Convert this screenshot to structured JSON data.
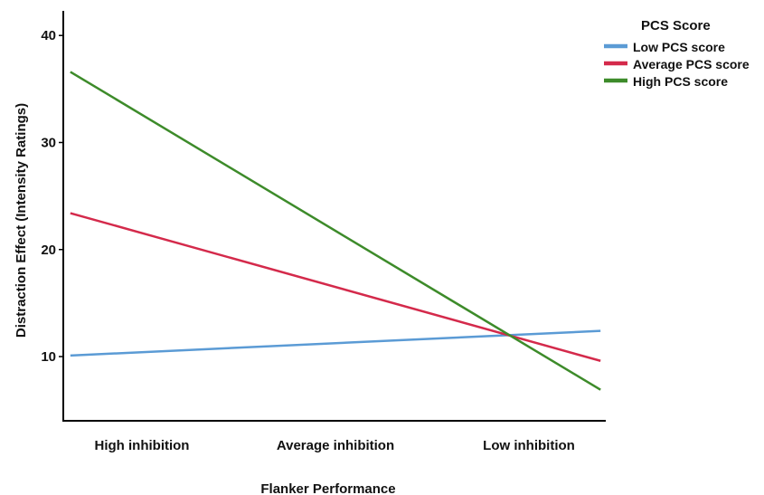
{
  "chart_data": {
    "type": "line",
    "title": "",
    "xlabel": "Flanker Performance",
    "ylabel": "Distraction Effect (Intensity Ratings)",
    "categories": [
      "High inhibition",
      "Average inhibition",
      "Low inhibition"
    ],
    "x_range": [
      0,
      2
    ],
    "yticks": [
      10,
      20,
      30,
      40
    ],
    "ylim": [
      4.0,
      42.3
    ],
    "grid": false,
    "legend": {
      "title": "PCS Score",
      "position": "top-right"
    },
    "series": [
      {
        "name": "Low PCS score",
        "color": "#5b9bd5",
        "x": [
          -0.37,
          2.37
        ],
        "values": [
          10.1,
          12.4
        ]
      },
      {
        "name": "Average PCS score",
        "color": "#d42a4b",
        "x": [
          -0.37,
          2.37
        ],
        "values": [
          23.4,
          9.6
        ]
      },
      {
        "name": "High PCS score",
        "color": "#3d8b2a",
        "x": [
          -0.37,
          2.37
        ],
        "values": [
          36.6,
          6.9
        ]
      }
    ]
  }
}
